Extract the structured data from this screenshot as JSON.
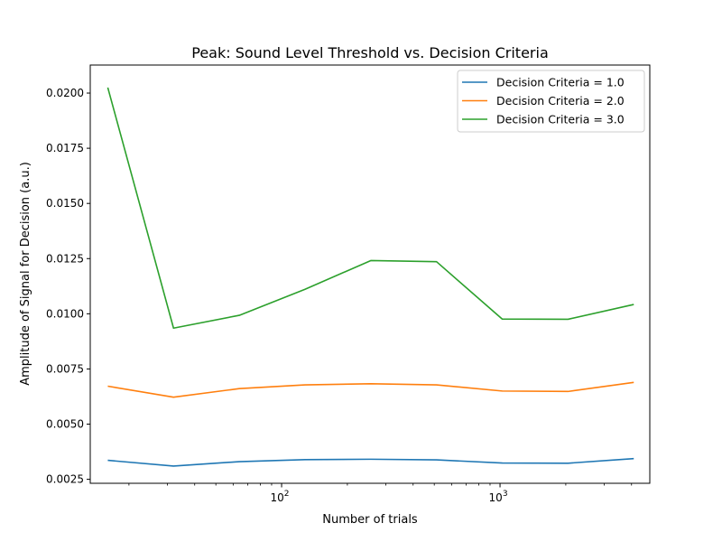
{
  "chart_data": {
    "type": "line",
    "title": "Peak: Sound Level Threshold vs. Decision Criteria",
    "xlabel": "Number of trials",
    "ylabel": "Amplitude of Signal for Decision (a.u.)",
    "xscale": "log",
    "xlim": [
      13.3,
      4850
    ],
    "ylim": [
      0.00232,
      0.02127
    ],
    "x": [
      16,
      32,
      64,
      128,
      256,
      512,
      1024,
      2048,
      4096
    ],
    "xticks": [
      {
        "value": 100,
        "base": "10",
        "exp": "2"
      },
      {
        "value": 1000,
        "base": "10",
        "exp": "3"
      }
    ],
    "yticks": [
      {
        "value": 0.0025,
        "label": "0.0025"
      },
      {
        "value": 0.005,
        "label": "0.0050"
      },
      {
        "value": 0.0075,
        "label": "0.0075"
      },
      {
        "value": 0.01,
        "label": "0.0100"
      },
      {
        "value": 0.0125,
        "label": "0.0125"
      },
      {
        "value": 0.015,
        "label": "0.0150"
      },
      {
        "value": 0.0175,
        "label": "0.0175"
      },
      {
        "value": 0.02,
        "label": "0.0200"
      }
    ],
    "grid": false,
    "legend_position": "top-right",
    "series": [
      {
        "name": "Decision Criteria = 1.0",
        "color": "#1f77b4",
        "values": [
          0.00336,
          0.0031,
          0.0033,
          0.00339,
          0.00341,
          0.00338,
          0.00324,
          0.00323,
          0.00344
        ]
      },
      {
        "name": "Decision Criteria = 2.0",
        "color": "#ff7f0e",
        "values": [
          0.00672,
          0.00622,
          0.00661,
          0.00678,
          0.00683,
          0.00678,
          0.0065,
          0.00648,
          0.00689
        ]
      },
      {
        "name": "Decision Criteria = 3.0",
        "color": "#2ca02c",
        "values": [
          0.02025,
          0.00935,
          0.00993,
          0.01111,
          0.01241,
          0.01236,
          0.00976,
          0.00975,
          0.01042
        ]
      }
    ]
  }
}
